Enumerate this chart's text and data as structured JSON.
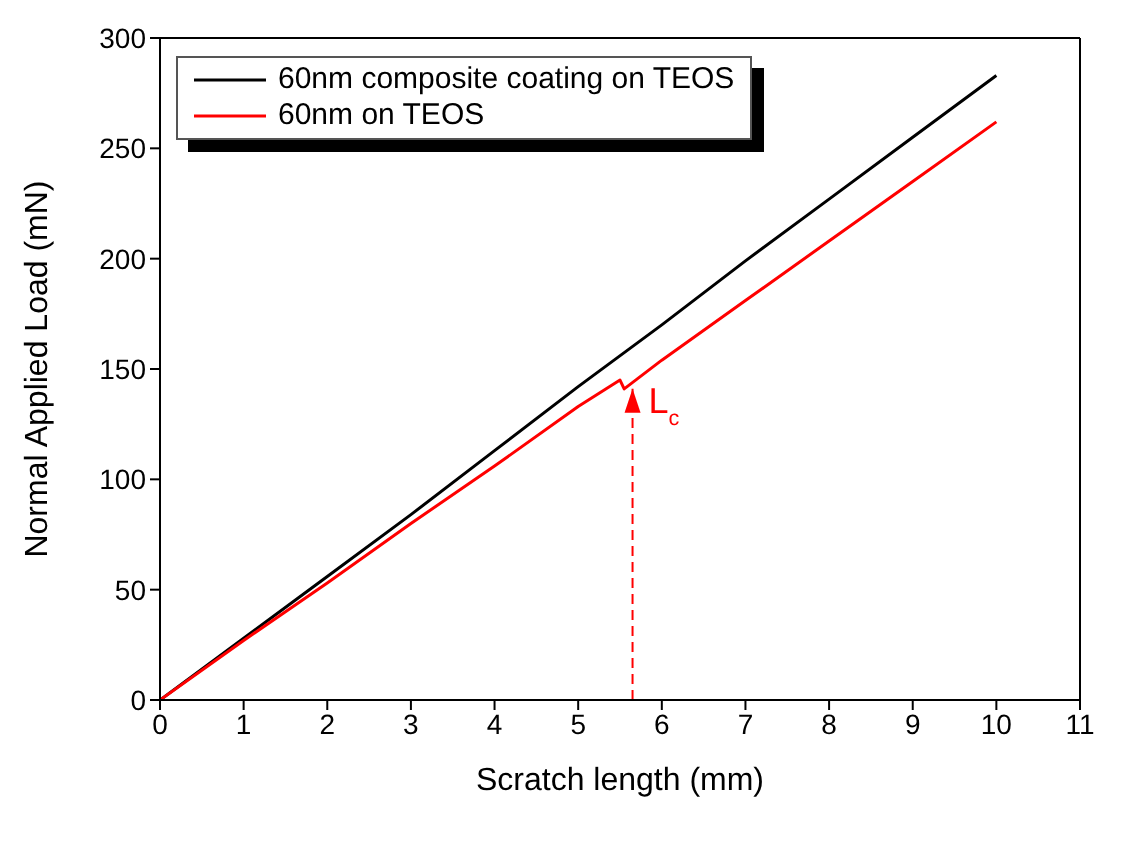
{
  "chart_data": {
    "type": "line",
    "xlabel": "Scratch length (mm)",
    "ylabel": "Normal Applied Load (mN)",
    "series": [
      {
        "name": "60nm composite coating on TEOS",
        "color": "#000000",
        "x": [
          0,
          1,
          2,
          3,
          4,
          5,
          6,
          7,
          8,
          9,
          10
        ],
        "values": [
          0,
          28,
          56,
          84,
          113,
          142,
          170,
          199,
          227,
          255,
          283
        ]
      },
      {
        "name": "60nm on TEOS",
        "color": "#ff0000",
        "x": [
          0,
          1,
          2,
          3,
          4,
          5,
          5.5,
          5.55,
          6,
          7,
          8,
          9,
          10
        ],
        "values": [
          0,
          27,
          53,
          80,
          106,
          133,
          145,
          141,
          154,
          181,
          208,
          235,
          262
        ]
      }
    ],
    "xlim": [
      0,
      11
    ],
    "xticks": [
      0,
      1,
      2,
      3,
      4,
      5,
      6,
      7,
      8,
      9,
      10,
      11
    ],
    "ylim": [
      0,
      300
    ],
    "yticks": [
      0,
      50,
      100,
      150,
      200,
      250,
      300
    ],
    "ref_lines": [
      {
        "axis": "x",
        "value": 5.65,
        "color": "#ff0000",
        "line_style": "dashed"
      }
    ],
    "annotations": [
      {
        "text": "L$_{c}$",
        "x": 5.65,
        "y": 141
      }
    ],
    "grid": false,
    "legend": "top left",
    "marker": "none",
    "line_style": "solid"
  }
}
